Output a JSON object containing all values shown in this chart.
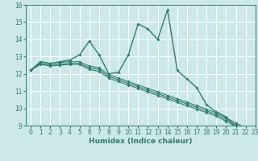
{
  "title": "",
  "xlabel": "Humidex (Indice chaleur)",
  "ylabel": "",
  "xlim": [
    -0.5,
    23
  ],
  "ylim": [
    9,
    16
  ],
  "xticks": [
    0,
    1,
    2,
    3,
    4,
    5,
    6,
    7,
    8,
    9,
    10,
    11,
    12,
    13,
    14,
    15,
    16,
    17,
    18,
    19,
    20,
    21,
    22,
    23
  ],
  "yticks": [
    9,
    10,
    11,
    12,
    13,
    14,
    15,
    16
  ],
  "background_color": "#cde8e8",
  "grid_color": "#ffffff",
  "line_color": "#2e7d6e",
  "series": [
    [
      12.2,
      12.7,
      12.6,
      12.7,
      12.8,
      13.1,
      13.9,
      13.1,
      12.0,
      12.1,
      13.1,
      14.9,
      14.6,
      14.0,
      15.7,
      12.2,
      11.7,
      11.2,
      10.2,
      9.8,
      9.5,
      8.9,
      8.8
    ],
    [
      12.2,
      12.7,
      12.6,
      12.65,
      12.7,
      12.7,
      12.45,
      12.35,
      11.95,
      11.75,
      11.55,
      11.35,
      11.15,
      10.95,
      10.75,
      10.55,
      10.35,
      10.15,
      9.95,
      9.75,
      9.45,
      9.15,
      8.85
    ],
    [
      12.2,
      12.6,
      12.5,
      12.55,
      12.6,
      12.6,
      12.35,
      12.25,
      11.85,
      11.65,
      11.45,
      11.25,
      11.05,
      10.85,
      10.65,
      10.45,
      10.25,
      10.05,
      9.85,
      9.65,
      9.35,
      9.05,
      8.75
    ],
    [
      12.2,
      12.55,
      12.45,
      12.5,
      12.55,
      12.55,
      12.25,
      12.15,
      11.75,
      11.55,
      11.35,
      11.15,
      10.95,
      10.75,
      10.55,
      10.35,
      10.15,
      9.95,
      9.75,
      9.55,
      9.25,
      8.95,
      8.65
    ]
  ],
  "linewidths": [
    1.0,
    0.8,
    0.8,
    0.8
  ],
  "markersize": 2.0,
  "tick_fontsize": 5.5,
  "xlabel_fontsize": 6.5
}
